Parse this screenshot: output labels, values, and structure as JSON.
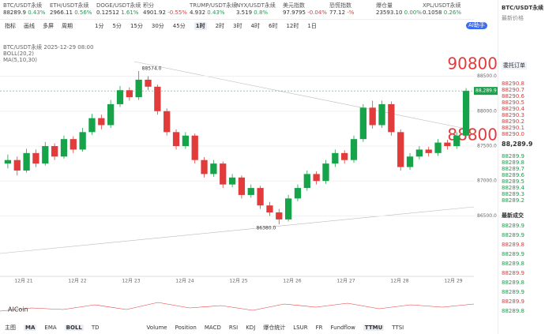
{
  "tickers": [
    {
      "name": "BTC/USDT永续",
      "price": "88289.9",
      "change": "0.43%"
    },
    {
      "name": "ETH/USDT永续",
      "price": "2966.11",
      "change": "0.56%"
    },
    {
      "name": "DOGE/USDT永续",
      "price": "0.12512",
      "change": "1.61%"
    },
    {
      "name": "积分",
      "price": "4901.92",
      "change": "-0.55%"
    },
    {
      "name": "TRUMP/USDT永续",
      "price": "4.932",
      "change": "0.43%"
    },
    {
      "name": "NYX/USDT永续",
      "price": "3.519",
      "change": "0.8%"
    },
    {
      "name": "美元指数",
      "price": "97.9795",
      "change": "-0.04%"
    },
    {
      "name": "恐慌指数",
      "price": "77.12",
      "change": "-%"
    },
    {
      "name": "爆仓量",
      "price": "23593.10",
      "change": "0.00%"
    },
    {
      "name": "XPL/USDT永续",
      "price": "0.1058",
      "change": "0.26%"
    }
  ],
  "toolbar": [
    "指标",
    "画线",
    "多屏",
    "周期"
  ],
  "periods": [
    "1分",
    "5分",
    "15分",
    "30分",
    "45分",
    "1时",
    "2时",
    "3时",
    "4时",
    "6时",
    "12时",
    "1日"
  ],
  "active_period": "1时",
  "ai_button": "AI助手",
  "chart_info": [
    "BTC/USDT永续 2025-12-29 08:00",
    "BOLL(20,2)",
    "MA(5,10,30)"
  ],
  "overlay_big": [
    "90800",
    "88800"
  ],
  "chart_data": {
    "type": "candlestick",
    "candles": [
      [
        87250,
        87380,
        87180,
        87300
      ],
      [
        87300,
        87350,
        87080,
        87150
      ],
      [
        87150,
        87460,
        87120,
        87400
      ],
      [
        87400,
        87450,
        87200,
        87250
      ],
      [
        87250,
        87560,
        87220,
        87500
      ],
      [
        87500,
        87540,
        87300,
        87350
      ],
      [
        87350,
        87650,
        87320,
        87600
      ],
      [
        87600,
        87640,
        87400,
        87450
      ],
      [
        87450,
        87760,
        87420,
        87700
      ],
      [
        87700,
        87960,
        87660,
        87900
      ],
      [
        87900,
        87950,
        87740,
        87800
      ],
      [
        87800,
        88160,
        87760,
        88100
      ],
      [
        88100,
        88360,
        88060,
        88300
      ],
      [
        88300,
        88340,
        88150,
        88200
      ],
      [
        88200,
        88574,
        88160,
        88450
      ],
      [
        88450,
        88500,
        88300,
        88350
      ],
      [
        88350,
        88380,
        87950,
        88000
      ],
      [
        88000,
        88040,
        87650,
        87700
      ],
      [
        87700,
        87740,
        87450,
        87500
      ],
      [
        87500,
        87700,
        87460,
        87650
      ],
      [
        87650,
        87680,
        87250,
        87300
      ],
      [
        87300,
        87340,
        87050,
        87100
      ],
      [
        87100,
        87300,
        87060,
        87250
      ],
      [
        87250,
        87280,
        86900,
        86950
      ],
      [
        86950,
        87100,
        86910,
        87050
      ],
      [
        87050,
        87080,
        86750,
        86800
      ],
      [
        86800,
        86950,
        86760,
        86900
      ],
      [
        86900,
        86930,
        86600,
        86650
      ],
      [
        86650,
        86700,
        86500,
        86550
      ],
      [
        86550,
        86600,
        86380,
        86450
      ],
      [
        86450,
        86800,
        86420,
        86750
      ],
      [
        86750,
        86950,
        86710,
        86900
      ],
      [
        86900,
        87150,
        86860,
        87100
      ],
      [
        87100,
        87140,
        86950,
        87000
      ],
      [
        87000,
        87300,
        86960,
        87250
      ],
      [
        87250,
        87450,
        87200,
        87400
      ],
      [
        87400,
        87440,
        87250,
        87300
      ],
      [
        87300,
        87650,
        87260,
        87600
      ],
      [
        87600,
        88100,
        87560,
        88050
      ],
      [
        88050,
        88150,
        87750,
        87800
      ],
      [
        87800,
        88150,
        87760,
        88100
      ],
      [
        88100,
        88140,
        87650,
        87700
      ],
      [
        87700,
        87740,
        87150,
        87200
      ],
      [
        87200,
        87400,
        87160,
        87350
      ],
      [
        87350,
        87500,
        87310,
        87450
      ],
      [
        87450,
        87490,
        87350,
        87400
      ],
      [
        87400,
        87600,
        87360,
        87550
      ],
      [
        87550,
        87590,
        87450,
        87500
      ],
      [
        87500,
        87700,
        87460,
        87650
      ],
      [
        87650,
        88330,
        87620,
        88289.9
      ]
    ],
    "up_color": "#16a34a",
    "down_color": "#e23b3b",
    "high_label": "88574.0",
    "low_label": "86380.0",
    "last_price": {
      "value": 88289.9,
      "label": "88,289.9"
    },
    "ylim": [
      86200,
      88800
    ],
    "yticks": [
      {
        "value": 86500,
        "label": "86500.0"
      },
      {
        "value": 87000,
        "label": "87000.0"
      },
      {
        "value": 87500,
        "label": "87500.0"
      },
      {
        "value": 88000,
        "label": "88000.0"
      },
      {
        "value": 88500,
        "label": "88500.0"
      }
    ],
    "x_labels": [
      "12月 21",
      "12月 22",
      "12月 23",
      "12月 24",
      "12月 25",
      "12月 26",
      "12月 27",
      "12月 28",
      "12月 29"
    ]
  },
  "indicator_logo": "AICoin",
  "bottom_left": [
    "主图",
    "MA",
    "EMA",
    "BOLL",
    "TD"
  ],
  "bottom_right": [
    "Volume",
    "Position",
    "MACD",
    "RSI",
    "KDJ",
    "爆仓统计",
    "LSUR",
    "FR",
    "Fundflow",
    "TTMU",
    "TTSI"
  ],
  "side": {
    "symbol": "BTC/USDT永续",
    "price_title": "最新价格",
    "order_book": "委托订单",
    "asks": [
      "88290.8",
      "88290.7",
      "88290.6",
      "88290.5",
      "88290.4",
      "88290.3",
      "88290.2",
      "88290.1",
      "88290.0"
    ],
    "last": "88,289.9",
    "bids": [
      "88289.9",
      "88289.8",
      "88289.7",
      "88289.6",
      "88289.5",
      "88289.4",
      "88289.3",
      "88289.2"
    ],
    "trades_title": "最新成交",
    "trades": [
      "88289.9",
      "88289.9",
      "88289.8",
      "88289.9",
      "88289.8",
      "88289.9",
      "88289.8",
      "88289.9",
      "88289.9",
      "88289.8"
    ]
  }
}
